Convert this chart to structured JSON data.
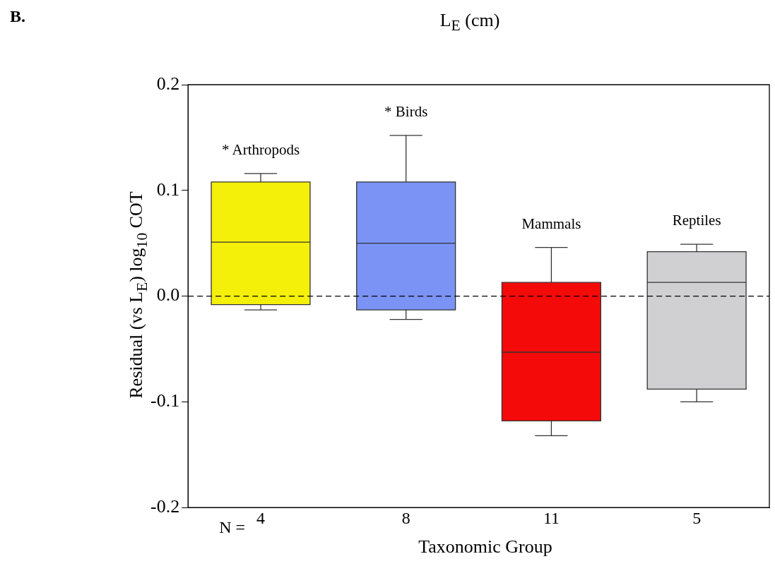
{
  "chart_data": {
    "type": "box",
    "title": "B.",
    "subtitle": "L$_{E}$ (cm)",
    "xlabel": "Taxonomic Group",
    "ylabel": "Residual (vs L$_{E}$) log$_{10}$ COT",
    "categories": [
      "4",
      "8",
      "11",
      "5"
    ],
    "colors": [
      "#f5f00a",
      "#7b93f5",
      "#f50a0a",
      "#d0d0d2"
    ],
    "boxes": [
      {
        "low": -0.013,
        "q1": -0.008,
        "median": 0.051,
        "q3": 0.108,
        "high": 0.116
      },
      {
        "low": -0.022,
        "q1": -0.013,
        "median": 0.05,
        "q3": 0.108,
        "high": 0.152
      },
      {
        "low": -0.132,
        "q1": -0.118,
        "median": -0.053,
        "q3": 0.013,
        "high": 0.046
      },
      {
        "low": -0.1,
        "q1": -0.088,
        "median": 0.013,
        "q3": 0.042,
        "high": 0.049
      }
    ],
    "ylim": [
      -0.2,
      0.2
    ],
    "yticks": [
      -0.2,
      -0.1,
      {
        "value": 0,
        "label": "0.0"
      },
      0.1,
      0.2
    ],
    "grid": false,
    "legend": false,
    "ref_lines": [
      {
        "axis": "y",
        "value": 0,
        "line_style": "dashed",
        "color": "#000000"
      }
    ],
    "annotations": [
      "N =",
      "* Arthropods",
      "* Birds",
      "Mammals",
      "Reptiles"
    ]
  }
}
